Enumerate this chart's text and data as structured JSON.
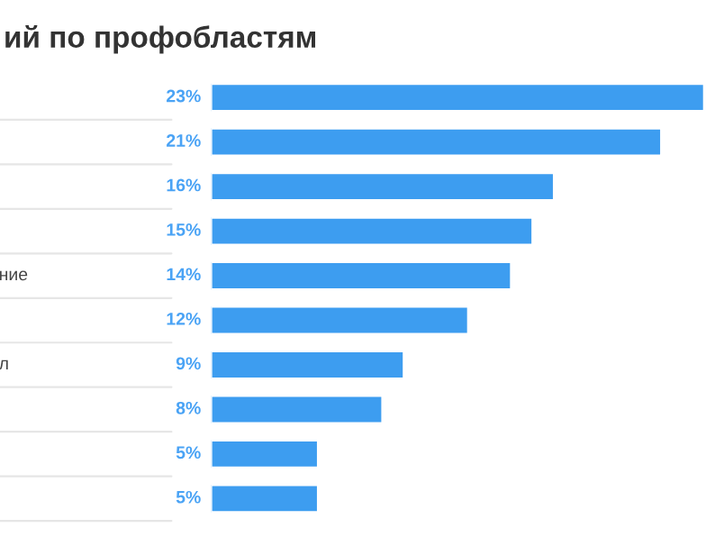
{
  "chart_data": {
    "type": "bar",
    "orientation": "horizontal",
    "title": "ий по профобластям",
    "categories": [
      null,
      null,
      null,
      null,
      "ние",
      null,
      "л",
      null,
      null,
      null
    ],
    "values": [
      23,
      21,
      16,
      15,
      14,
      12,
      9,
      8,
      5,
      5
    ],
    "value_labels": [
      "23%",
      "21%",
      "16%",
      "15%",
      "14%",
      "12%",
      "9%",
      "8%",
      "5%",
      "5%"
    ],
    "color": "#3d9df0"
  }
}
